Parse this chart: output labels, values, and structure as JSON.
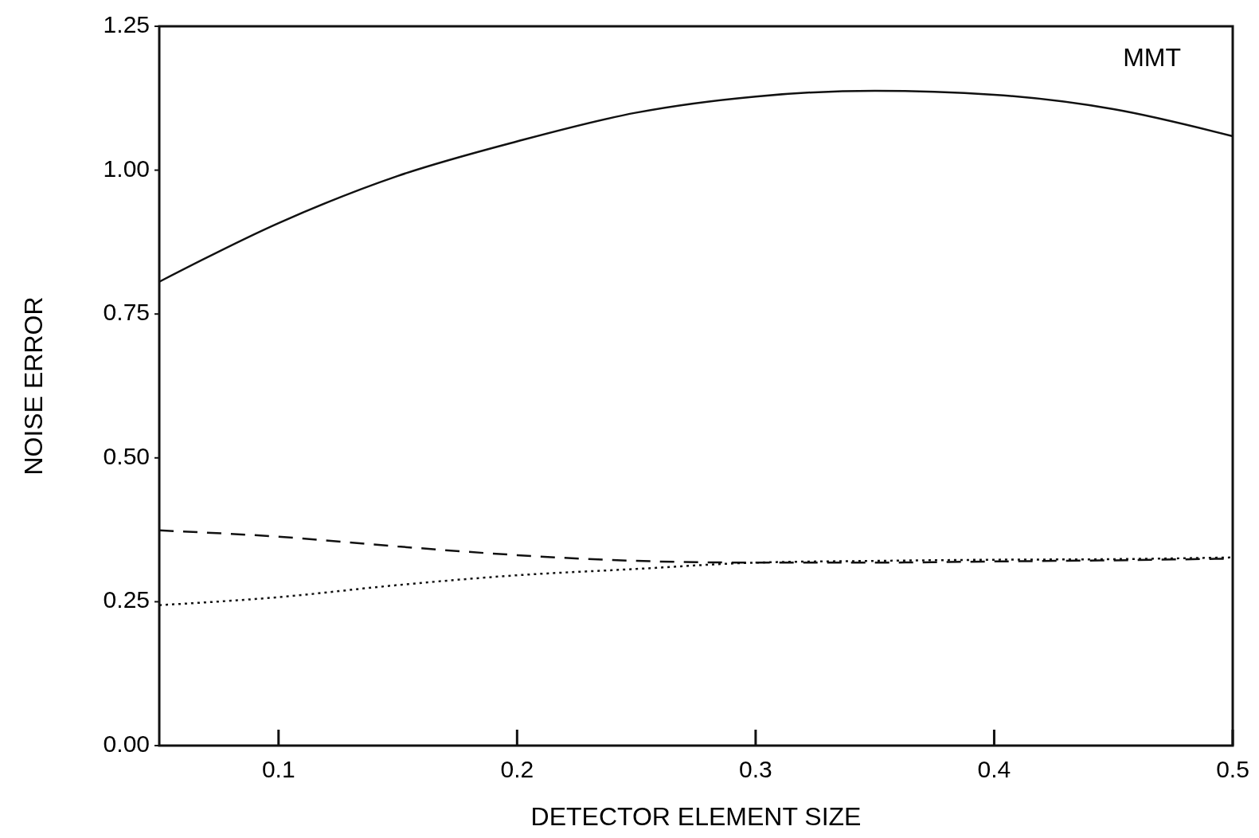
{
  "chart_data": {
    "type": "line",
    "xlabel": "DETECTOR ELEMENT SIZE",
    "ylabel": "NOISE ERROR",
    "annotations": [
      "MMT"
    ],
    "x": [
      0.05,
      0.1,
      0.15,
      0.2,
      0.25,
      0.3,
      0.35,
      0.4,
      0.45,
      0.5
    ],
    "series": [
      {
        "color": "#111111",
        "line_style": "solid",
        "values": [
          0.806,
          0.908,
          0.99,
          1.05,
          1.1,
          1.128,
          1.138,
          1.131,
          1.106,
          1.059
        ]
      },
      {
        "color": "#111111",
        "line_style": "dashed",
        "values": [
          0.374,
          0.363,
          0.346,
          0.331,
          0.321,
          0.318,
          0.318,
          0.32,
          0.322,
          0.325
        ]
      },
      {
        "color": "#111111",
        "line_style": "dotted",
        "values": [
          0.244,
          0.258,
          0.279,
          0.296,
          0.307,
          0.318,
          0.321,
          0.323,
          0.324,
          0.327
        ]
      }
    ],
    "xlim": [
      0.05,
      0.5
    ],
    "xticks": [
      0.1,
      0.2,
      0.3,
      0.4,
      0.5
    ],
    "ylim": [
      0,
      1.25
    ],
    "yticks": [
      {
        "value": 0,
        "label": "0.00"
      },
      {
        "value": 0.25,
        "label": "0.25"
      },
      {
        "value": 0.5,
        "label": "0.50"
      },
      {
        "value": 0.75,
        "label": "0.75"
      },
      {
        "value": 1,
        "label": "1.00"
      },
      {
        "value": 1.25,
        "label": "1.25"
      }
    ],
    "grid": false
  }
}
